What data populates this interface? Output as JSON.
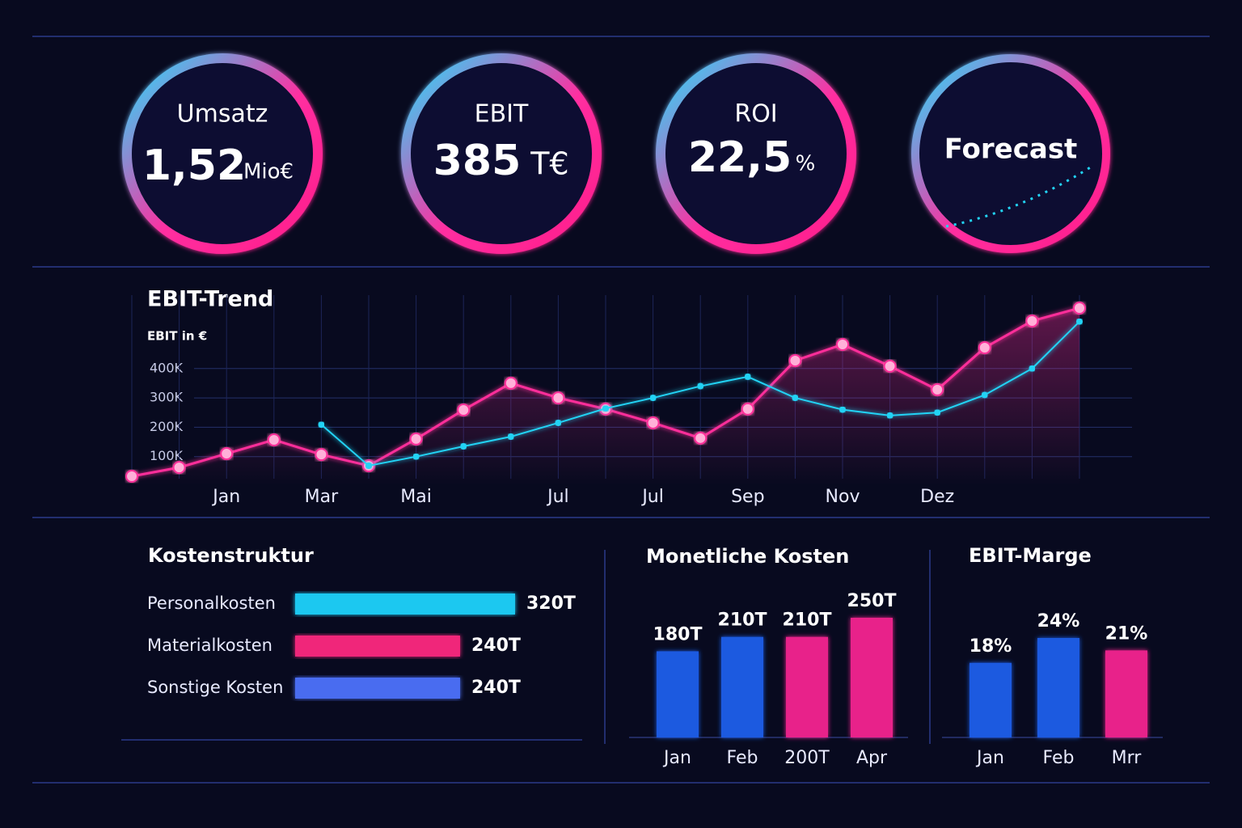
{
  "kpis": [
    {
      "label": "Umsatz",
      "value": "1,52",
      "unit": "Mio€"
    },
    {
      "label": "EBIT",
      "value": "385",
      "unit": "T€"
    },
    {
      "label": "ROI",
      "value": "22,5",
      "unit": "%"
    },
    {
      "label": "Forecast"
    }
  ],
  "chart_data": [
    {
      "type": "line",
      "title": "EBIT-Trend",
      "y_label": "EBIT in €",
      "categories": [
        null,
        null,
        "Jan",
        null,
        "Mar",
        null,
        "Mai",
        null,
        null,
        "Jul",
        null,
        "Jul",
        null,
        "Sep",
        null,
        "Nov",
        null,
        "Dez",
        null,
        null,
        null
      ],
      "series": [
        {
          "color": "#ff2e9a",
          "values": [
            33000,
            63000,
            110000,
            157000,
            107000,
            69000,
            160000,
            259000,
            350000,
            300000,
            262000,
            215000,
            163000,
            262000,
            427000,
            482000,
            408000,
            328000,
            471000,
            562000,
            606000
          ]
        },
        {
          "color": "#22d3f5",
          "values": [
            null,
            null,
            null,
            null,
            209000,
            69000,
            100000,
            135000,
            168000,
            215000,
            264000,
            300000,
            340000,
            372000,
            300000,
            260000,
            240000,
            250000,
            310000,
            400000,
            560000
          ]
        }
      ],
      "ylim": [
        0,
        650000
      ],
      "yticks": [
        {
          "value": 100000,
          "label": "100K"
        },
        {
          "value": 200000,
          "label": "200K"
        },
        {
          "value": 300000,
          "label": "300K"
        },
        {
          "value": 400000,
          "label": "400K"
        }
      ],
      "grid": true
    },
    {
      "type": "hbar",
      "title": "Kostenstruktur",
      "categories": [
        "Personalkosten",
        "Materialkosten",
        "Sonstige Kosten"
      ],
      "values": [
        320,
        240,
        240
      ],
      "value_labels": [
        "320T",
        "240T",
        "240T"
      ],
      "colors": [
        "#1ec8f0",
        "#f0287a",
        "#4a6cf0"
      ]
    },
    {
      "type": "bar",
      "title": "Monetliche Kosten",
      "categories": [
        "Jan",
        "Feb",
        "200T",
        "Apr"
      ],
      "values": [
        180,
        210,
        210,
        250
      ],
      "value_labels": [
        "180T",
        "210T",
        "210T",
        "250T"
      ],
      "colors": [
        "#1a5ae0",
        "#1a5ae0",
        "#e8208a",
        "#e8208a"
      ]
    },
    {
      "type": "bar",
      "title": "EBIT-Marge",
      "categories": [
        "Jan",
        "Feb",
        "Mrr"
      ],
      "values": [
        18,
        24,
        21
      ],
      "value_labels": [
        "18%",
        "24%",
        "21%"
      ],
      "colors": [
        "#1a5ae0",
        "#1a5ae0",
        "#e8208a"
      ]
    }
  ]
}
